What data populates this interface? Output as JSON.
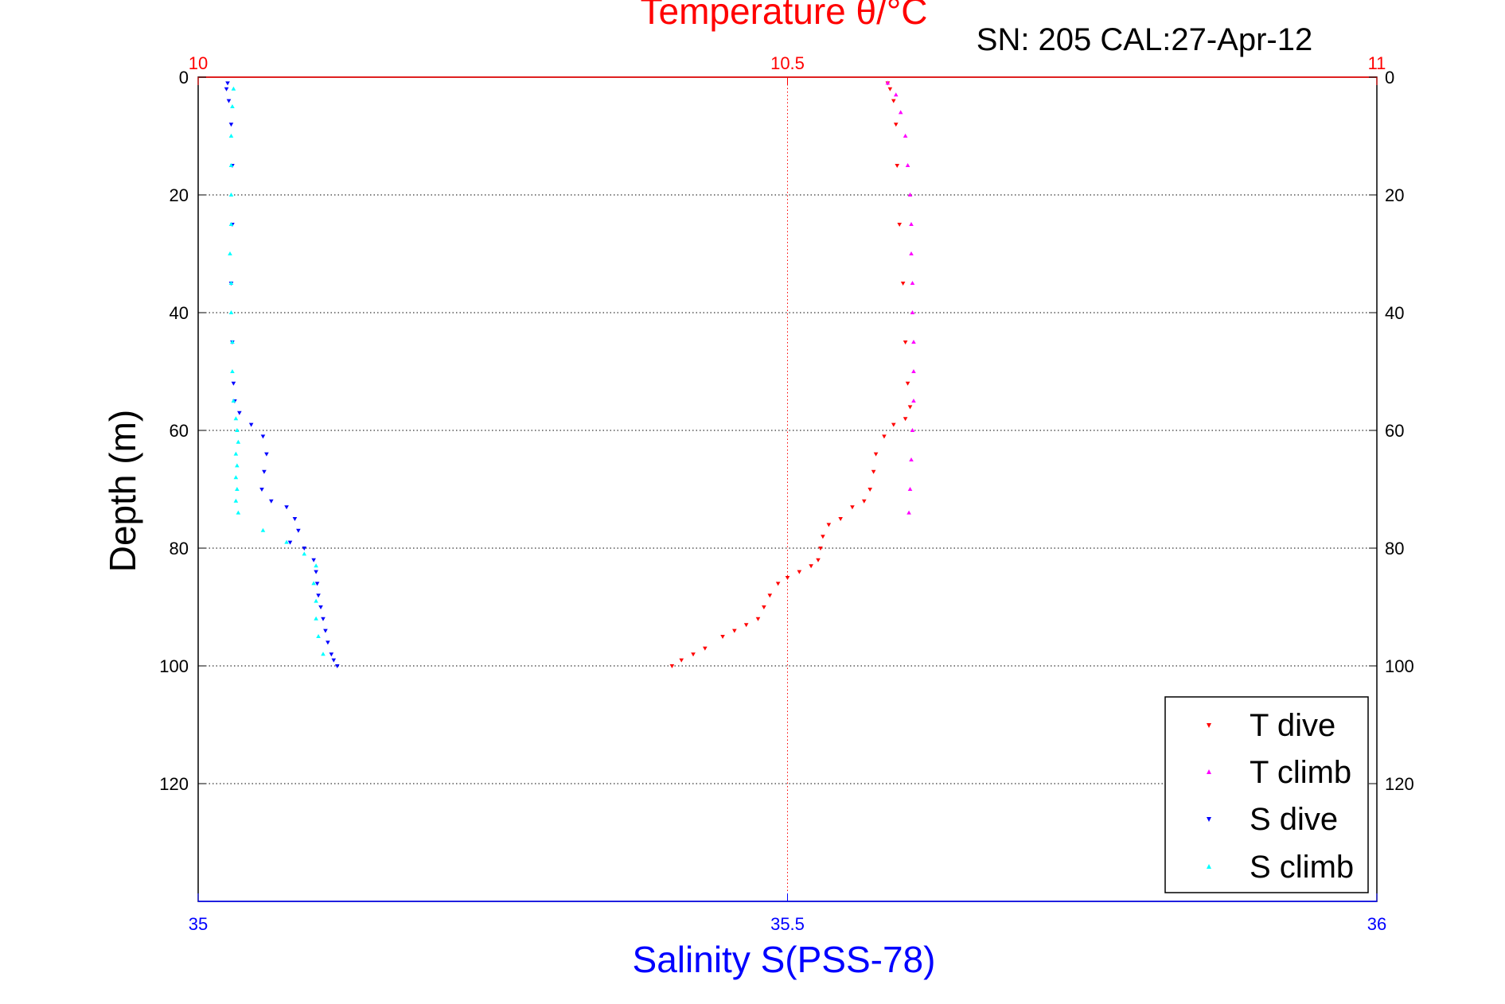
{
  "chart_data": {
    "type": "scatter",
    "top_title": "Temperature θ/°C",
    "subtitle": "SN: 205  CAL:27-Apr-12",
    "xlabel": "Salinity S(PSS-78)",
    "ylabel": "Depth (m)",
    "temperature_axis": {
      "range": [
        10,
        11
      ],
      "ticks": [
        "10",
        "10.5",
        "11"
      ]
    },
    "salinity_axis": {
      "range": [
        35,
        36
      ],
      "ticks": [
        "35",
        "35.5",
        "36"
      ]
    },
    "depth_axis": {
      "range": [
        0,
        140
      ],
      "reversed": true,
      "ticks": [
        "0",
        "20",
        "40",
        "60",
        "80",
        "100",
        "120"
      ]
    },
    "grid": "dotted",
    "legend_position": "bottom-right",
    "colors": {
      "temperature": "#ff0000",
      "salinity": "#0000ff",
      "grid": "#000000"
    },
    "series": [
      {
        "name": "T dive",
        "axis": "temperature",
        "marker": "triangle-down",
        "color": "#ff0000",
        "points": [
          [
            10.585,
            1
          ],
          [
            10.587,
            2
          ],
          [
            10.59,
            4
          ],
          [
            10.592,
            8
          ],
          [
            10.593,
            15
          ],
          [
            10.595,
            25
          ],
          [
            10.598,
            35
          ],
          [
            10.6,
            45
          ],
          [
            10.602,
            52
          ],
          [
            10.604,
            56
          ],
          [
            10.6,
            58
          ],
          [
            10.59,
            59
          ],
          [
            10.582,
            61
          ],
          [
            10.575,
            64
          ],
          [
            10.573,
            67
          ],
          [
            10.57,
            70
          ],
          [
            10.565,
            72
          ],
          [
            10.555,
            73
          ],
          [
            10.545,
            75
          ],
          [
            10.535,
            76
          ],
          [
            10.53,
            78
          ],
          [
            10.528,
            80
          ],
          [
            10.526,
            82
          ],
          [
            10.52,
            83
          ],
          [
            10.51,
            84
          ],
          [
            10.5,
            85
          ],
          [
            10.492,
            86
          ],
          [
            10.485,
            88
          ],
          [
            10.48,
            90
          ],
          [
            10.475,
            92
          ],
          [
            10.465,
            93
          ],
          [
            10.455,
            94
          ],
          [
            10.445,
            95
          ],
          [
            10.43,
            97
          ],
          [
            10.42,
            98
          ],
          [
            10.41,
            99
          ],
          [
            10.402,
            100
          ]
        ]
      },
      {
        "name": "T climb",
        "axis": "temperature",
        "marker": "triangle-up",
        "color": "#ff00ff",
        "points": [
          [
            10.585,
            1
          ],
          [
            10.592,
            3
          ],
          [
            10.596,
            6
          ],
          [
            10.6,
            10
          ],
          [
            10.602,
            15
          ],
          [
            10.604,
            20
          ],
          [
            10.605,
            25
          ],
          [
            10.605,
            30
          ],
          [
            10.606,
            35
          ],
          [
            10.606,
            40
          ],
          [
            10.607,
            45
          ],
          [
            10.607,
            50
          ],
          [
            10.607,
            55
          ],
          [
            10.606,
            60
          ],
          [
            10.605,
            65
          ],
          [
            10.604,
            70
          ],
          [
            10.603,
            74
          ]
        ]
      },
      {
        "name": "S dive",
        "axis": "salinity",
        "marker": "triangle-down",
        "color": "#0000ff",
        "points": [
          [
            35.025,
            1
          ],
          [
            35.024,
            2
          ],
          [
            35.026,
            4
          ],
          [
            35.028,
            8
          ],
          [
            35.029,
            15
          ],
          [
            35.029,
            25
          ],
          [
            35.028,
            35
          ],
          [
            35.029,
            45
          ],
          [
            35.03,
            52
          ],
          [
            35.031,
            55
          ],
          [
            35.035,
            57
          ],
          [
            35.045,
            59
          ],
          [
            35.055,
            61
          ],
          [
            35.058,
            64
          ],
          [
            35.056,
            67
          ],
          [
            35.054,
            70
          ],
          [
            35.062,
            72
          ],
          [
            35.075,
            73
          ],
          [
            35.082,
            75
          ],
          [
            35.085,
            77
          ],
          [
            35.078,
            79
          ],
          [
            35.09,
            80
          ],
          [
            35.098,
            82
          ],
          [
            35.1,
            84
          ],
          [
            35.101,
            86
          ],
          [
            35.102,
            88
          ],
          [
            35.104,
            90
          ],
          [
            35.106,
            92
          ],
          [
            35.108,
            94
          ],
          [
            35.11,
            96
          ],
          [
            35.113,
            98
          ],
          [
            35.115,
            99
          ],
          [
            35.118,
            100
          ]
        ]
      },
      {
        "name": "S climb",
        "axis": "salinity",
        "marker": "triangle-up",
        "color": "#00ffff",
        "points": [
          [
            35.03,
            2
          ],
          [
            35.029,
            5
          ],
          [
            35.028,
            10
          ],
          [
            35.028,
            15
          ],
          [
            35.028,
            20
          ],
          [
            35.028,
            25
          ],
          [
            35.027,
            30
          ],
          [
            35.028,
            35
          ],
          [
            35.028,
            40
          ],
          [
            35.029,
            45
          ],
          [
            35.029,
            50
          ],
          [
            35.03,
            55
          ],
          [
            35.032,
            58
          ],
          [
            35.033,
            60
          ],
          [
            35.034,
            62
          ],
          [
            35.032,
            64
          ],
          [
            35.033,
            66
          ],
          [
            35.032,
            68
          ],
          [
            35.033,
            70
          ],
          [
            35.032,
            72
          ],
          [
            35.034,
            74
          ],
          [
            35.055,
            77
          ],
          [
            35.075,
            79
          ],
          [
            35.09,
            81
          ],
          [
            35.1,
            83
          ],
          [
            35.098,
            86
          ],
          [
            35.1,
            89
          ],
          [
            35.1,
            92
          ],
          [
            35.102,
            95
          ],
          [
            35.106,
            98
          ]
        ]
      }
    ]
  }
}
